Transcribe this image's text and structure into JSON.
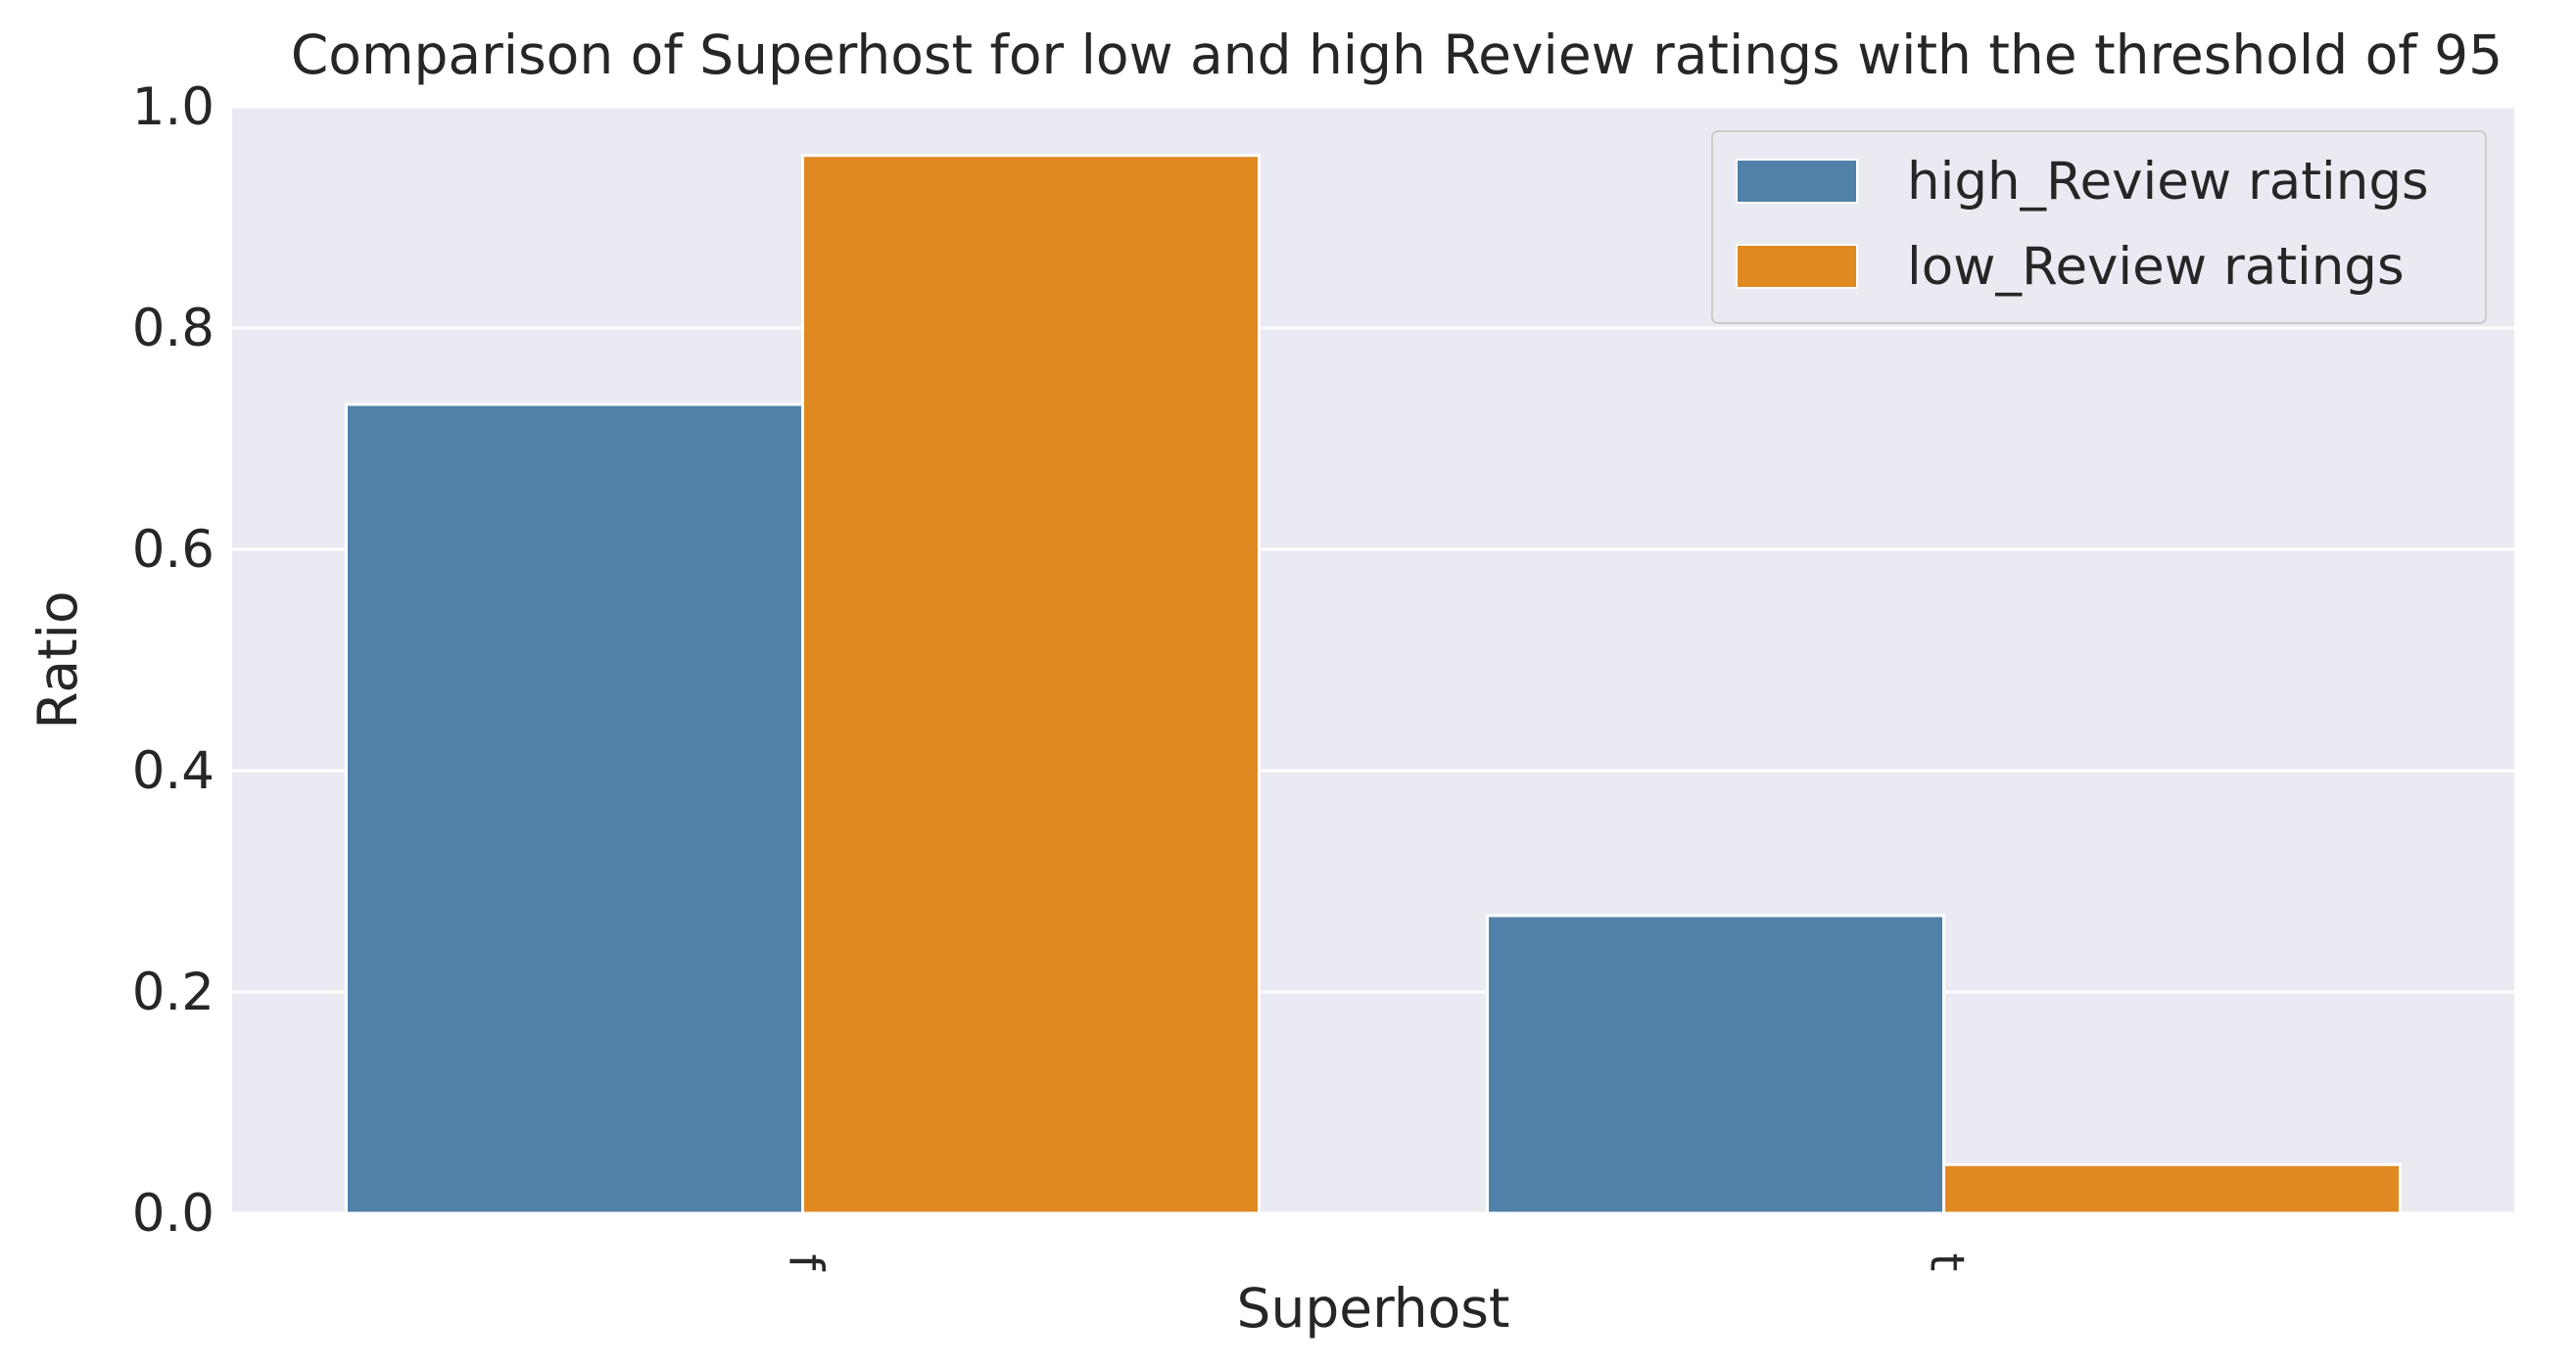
{
  "chart_data": {
    "type": "bar",
    "title": "Comparison of Superhost for low and high Review ratings with the threshold of 95",
    "xlabel": "Superhost",
    "ylabel": "Ratio",
    "categories": [
      "f",
      "t"
    ],
    "series": [
      {
        "name": "high_Review ratings",
        "values": [
          0.731,
          0.269
        ],
        "color": "#5181a8"
      },
      {
        "name": "low_Review ratings",
        "values": [
          0.956,
          0.044
        ],
        "color": "#df8920"
      }
    ],
    "ylim": [
      0,
      1.0
    ],
    "yticks": [
      "0.0",
      "0.2",
      "0.4",
      "0.6",
      "0.8",
      "1.0"
    ],
    "grid": true,
    "legend_position": "top-right",
    "background_color": "#eaeaf2",
    "grid_color": "#ffffff"
  }
}
